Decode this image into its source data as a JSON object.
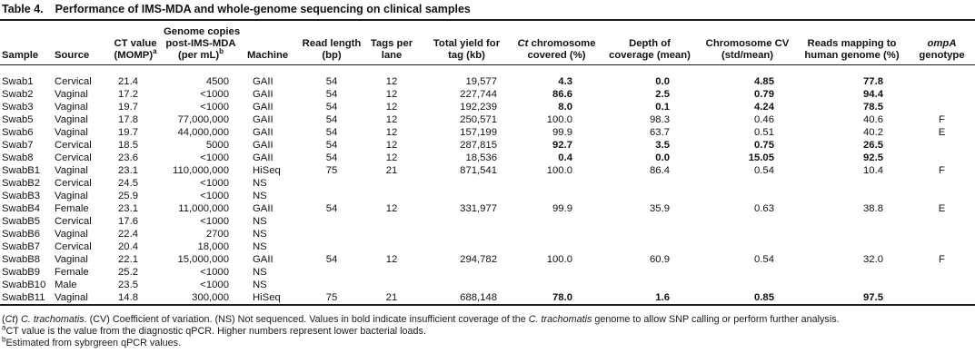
{
  "title": {
    "label": "Table 4.",
    "text": "Performance of IMS-MDA and whole-genome sequencing on clinical samples"
  },
  "table": {
    "columns": [
      {
        "label": "Sample"
      },
      {
        "label": "Source"
      },
      {
        "line1": "CT value",
        "line2": "(MOMP)",
        "sup": "a"
      },
      {
        "line1": "Genome copies",
        "line2": "post-IMS-MDA",
        "line3": "(per mL)",
        "sup": "b"
      },
      {
        "label": "Machine"
      },
      {
        "line1": "Read length",
        "line2": "(bp)"
      },
      {
        "line1": "Tags per",
        "line2": "lane"
      },
      {
        "line1": "Total yield for",
        "line2": "tag (kb)"
      },
      {
        "it": "Ct",
        "line1": " chromosome",
        "line2": "covered (%)"
      },
      {
        "line1": "Depth of",
        "line2": "coverage (mean)"
      },
      {
        "line1": "Chromosome CV",
        "line2": "(std/mean)"
      },
      {
        "line1": "Reads mapping to",
        "line2": "human genome (%)"
      },
      {
        "it": "ompA",
        "line2": "genotype"
      }
    ],
    "rows": [
      {
        "sample": "Swab1",
        "source": "Cervical",
        "ct_value": "21.4",
        "genome_copies": "4500",
        "machine": "GAII",
        "read_length": "54",
        "tags_per_lane": "12",
        "total_yield": "19,577",
        "chrom_covered": "4.3",
        "depth": "0.0",
        "cv": "4.85",
        "human_pct": "77.8",
        "genotype": "",
        "bold": true
      },
      {
        "sample": "Swab2",
        "source": "Vaginal",
        "ct_value": "17.2",
        "genome_copies": "<1000",
        "machine": "GAII",
        "read_length": "54",
        "tags_per_lane": "12",
        "total_yield": "227,744",
        "chrom_covered": "86.6",
        "depth": "2.5",
        "cv": "0.79",
        "human_pct": "94.4",
        "genotype": "",
        "bold": true
      },
      {
        "sample": "Swab3",
        "source": "Vaginal",
        "ct_value": "19.7",
        "genome_copies": "<1000",
        "machine": "GAII",
        "read_length": "54",
        "tags_per_lane": "12",
        "total_yield": "192,239",
        "chrom_covered": "8.0",
        "depth": "0.1",
        "cv": "4.24",
        "human_pct": "78.5",
        "genotype": "",
        "bold": true
      },
      {
        "sample": "Swab5",
        "source": "Vaginal",
        "ct_value": "17.8",
        "genome_copies": "77,000,000",
        "machine": "GAII",
        "read_length": "54",
        "tags_per_lane": "12",
        "total_yield": "250,571",
        "chrom_covered": "100.0",
        "depth": "98.3",
        "cv": "0.46",
        "human_pct": "40.6",
        "genotype": "F",
        "bold": false
      },
      {
        "sample": "Swab6",
        "source": "Vaginal",
        "ct_value": "19.7",
        "genome_copies": "44,000,000",
        "machine": "GAII",
        "read_length": "54",
        "tags_per_lane": "12",
        "total_yield": "157,199",
        "chrom_covered": "99.9",
        "depth": "63.7",
        "cv": "0.51",
        "human_pct": "40.2",
        "genotype": "E",
        "bold": false
      },
      {
        "sample": "Swab7",
        "source": "Cervical",
        "ct_value": "18.5",
        "genome_copies": "5000",
        "machine": "GAII",
        "read_length": "54",
        "tags_per_lane": "12",
        "total_yield": "287,815",
        "chrom_covered": "92.7",
        "depth": "3.5",
        "cv": "0.75",
        "human_pct": "26.5",
        "genotype": "",
        "bold": true
      },
      {
        "sample": "Swab8",
        "source": "Cervical",
        "ct_value": "23.6",
        "genome_copies": "<1000",
        "machine": "GAII",
        "read_length": "54",
        "tags_per_lane": "12",
        "total_yield": "18,536",
        "chrom_covered": "0.4",
        "depth": "0.0",
        "cv": "15.05",
        "human_pct": "92.5",
        "genotype": "",
        "bold": true
      },
      {
        "sample": "SwabB1",
        "source": "Vaginal",
        "ct_value": "23.1",
        "genome_copies": "110,000,000",
        "machine": "HiSeq",
        "read_length": "75",
        "tags_per_lane": "21",
        "total_yield": "871,541",
        "chrom_covered": "100.0",
        "depth": "86.4",
        "cv": "0.54",
        "human_pct": "10.4",
        "genotype": "F",
        "bold": false
      },
      {
        "sample": "SwabB2",
        "source": "Cervical",
        "ct_value": "24.5",
        "genome_copies": "<1000",
        "machine": "NS",
        "read_length": "",
        "tags_per_lane": "",
        "total_yield": "",
        "chrom_covered": "",
        "depth": "",
        "cv": "",
        "human_pct": "",
        "genotype": "",
        "bold": false
      },
      {
        "sample": "SwabB3",
        "source": "Vaginal",
        "ct_value": "25.9",
        "genome_copies": "<1000",
        "machine": "NS",
        "read_length": "",
        "tags_per_lane": "",
        "total_yield": "",
        "chrom_covered": "",
        "depth": "",
        "cv": "",
        "human_pct": "",
        "genotype": "",
        "bold": false
      },
      {
        "sample": "SwabB4",
        "source": "Female",
        "ct_value": "23.1",
        "genome_copies": "11,000,000",
        "machine": "GAII",
        "read_length": "54",
        "tags_per_lane": "12",
        "total_yield": "331,977",
        "chrom_covered": "99.9",
        "depth": "35.9",
        "cv": "0.63",
        "human_pct": "38.8",
        "genotype": "E",
        "bold": false
      },
      {
        "sample": "SwabB5",
        "source": "Cervical",
        "ct_value": "17.6",
        "genome_copies": "<1000",
        "machine": "NS",
        "read_length": "",
        "tags_per_lane": "",
        "total_yield": "",
        "chrom_covered": "",
        "depth": "",
        "cv": "",
        "human_pct": "",
        "genotype": "",
        "bold": false
      },
      {
        "sample": "SwabB6",
        "source": "Vaginal",
        "ct_value": "22.4",
        "genome_copies": "2700",
        "machine": "NS",
        "read_length": "",
        "tags_per_lane": "",
        "total_yield": "",
        "chrom_covered": "",
        "depth": "",
        "cv": "",
        "human_pct": "",
        "genotype": "",
        "bold": false
      },
      {
        "sample": "SwabB7",
        "source": "Cervical",
        "ct_value": "20.4",
        "genome_copies": "18,000",
        "machine": "NS",
        "read_length": "",
        "tags_per_lane": "",
        "total_yield": "",
        "chrom_covered": "",
        "depth": "",
        "cv": "",
        "human_pct": "",
        "genotype": "",
        "bold": false
      },
      {
        "sample": "SwabB8",
        "source": "Vaginal",
        "ct_value": "22.1",
        "genome_copies": "15,000,000",
        "machine": "GAII",
        "read_length": "54",
        "tags_per_lane": "12",
        "total_yield": "294,782",
        "chrom_covered": "100.0",
        "depth": "60.9",
        "cv": "0.54",
        "human_pct": "32.0",
        "genotype": "F",
        "bold": false
      },
      {
        "sample": "SwabB9",
        "source": "Female",
        "ct_value": "25.2",
        "genome_copies": "<1000",
        "machine": "NS",
        "read_length": "",
        "tags_per_lane": "",
        "total_yield": "",
        "chrom_covered": "",
        "depth": "",
        "cv": "",
        "human_pct": "",
        "genotype": "",
        "bold": false
      },
      {
        "sample": "SwabB10",
        "source": "Male",
        "ct_value": "23.5",
        "genome_copies": "<1000",
        "machine": "NS",
        "read_length": "",
        "tags_per_lane": "",
        "total_yield": "",
        "chrom_covered": "",
        "depth": "",
        "cv": "",
        "human_pct": "",
        "genotype": "",
        "bold": false
      },
      {
        "sample": "SwabB11",
        "source": "Vaginal",
        "ct_value": "14.8",
        "genome_copies": "300,000",
        "machine": "HiSeq",
        "read_length": "75",
        "tags_per_lane": "21",
        "total_yield": "688,148",
        "chrom_covered": "78.0",
        "depth": "1.6",
        "cv": "0.85",
        "human_pct": "97.5",
        "genotype": "",
        "bold": true
      }
    ]
  },
  "footnotes": {
    "line1": {
      "p1": "(",
      "it1": "Ct",
      "p2": ") ",
      "it2": "C. trachomatis",
      "p3": ". (CV) Coefficient of variation. (NS) Not sequenced. Values in bold indicate insufficient coverage of the ",
      "it3": "C. trachomatis",
      "p4": " genome to allow SNP calling or perform further analysis."
    },
    "line2": {
      "sup": "a",
      "text": "CT value is the value from the diagnostic qPCR. Higher numbers represent lower bacterial loads."
    },
    "line3": {
      "sup": "b",
      "text": "Estimated from sybrgreen qPCR values."
    }
  }
}
